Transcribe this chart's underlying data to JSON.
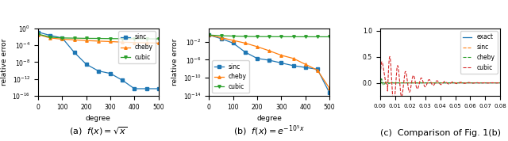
{
  "fig_width": 6.4,
  "fig_height": 1.78,
  "dpi": 100,
  "subplot_a": {
    "xlabel": "degree",
    "ylabel": "relative error",
    "degrees": [
      0,
      50,
      100,
      150,
      200,
      250,
      300,
      350,
      400,
      450,
      500
    ],
    "sinc": [
      0.12,
      0.02,
      0.005,
      2e-06,
      3e-09,
      8e-11,
      2e-11,
      5e-13,
      5e-15,
      5e-15,
      5e-15
    ],
    "cheby": [
      0.03,
      0.005,
      0.0025,
      0.0018,
      0.0012,
      0.0009,
      0.0007,
      0.0005,
      0.0004,
      0.00035,
      0.0003
    ],
    "cubic": [
      0.04,
      0.008,
      0.005,
      0.0045,
      0.004,
      0.0038,
      0.0035,
      0.0033,
      0.0032,
      0.0031,
      0.003
    ],
    "sinc_color": "#1f77b4",
    "cheby_color": "#ff7f0e",
    "cubic_color": "#2ca02c",
    "sinc_marker": "s",
    "cheby_marker": "^",
    "cubic_marker": "v",
    "legend_loc": "upper right",
    "ylim_low": 1e-16,
    "ylim_high": 1.0
  },
  "subplot_b": {
    "xlabel": "degree",
    "ylabel": "relative error",
    "degrees": [
      0,
      50,
      100,
      150,
      200,
      250,
      300,
      350,
      400,
      450,
      500
    ],
    "sinc": [
      0.3,
      0.05,
      0.005,
      5e-05,
      2e-06,
      8e-07,
      2e-07,
      5e-08,
      2e-08,
      8e-09,
      5e-14
    ],
    "cheby": [
      0.3,
      0.08,
      0.02,
      0.005,
      0.0008,
      0.0001,
      1e-05,
      2e-06,
      1e-07,
      5e-09,
      5e-13
    ],
    "cubic": [
      0.3,
      0.22,
      0.18,
      0.15,
      0.14,
      0.135,
      0.13,
      0.128,
      0.127,
      0.126,
      0.125
    ],
    "sinc_color": "#1f77b4",
    "cheby_color": "#ff7f0e",
    "cubic_color": "#2ca02c",
    "sinc_marker": "s",
    "cheby_marker": "^",
    "cubic_marker": "v",
    "legend_loc": "lower left",
    "ylim_low": 1e-14,
    "ylim_high": 10.0
  },
  "subplot_c": {
    "xlim": [
      0.0,
      0.08
    ],
    "ylim": [
      -0.25,
      1.05
    ],
    "xticks": [
      0.0,
      0.01,
      0.02,
      0.03,
      0.04,
      0.05,
      0.06,
      0.07,
      0.08
    ],
    "exact_color": "#1f77b4",
    "sinc_color": "#ff7f0e",
    "cheby_color": "#2ca02c",
    "cubic_color": "#d62728",
    "legend_loc": "upper right"
  },
  "caption_a": "(a)  $f(x) = \\sqrt{x}$",
  "caption_b": "(b)  $f(x) = e^{-10^5 x}$",
  "caption_c": "(c)  Comparison of Fig. 1(b)",
  "caption_fontsize": 8
}
